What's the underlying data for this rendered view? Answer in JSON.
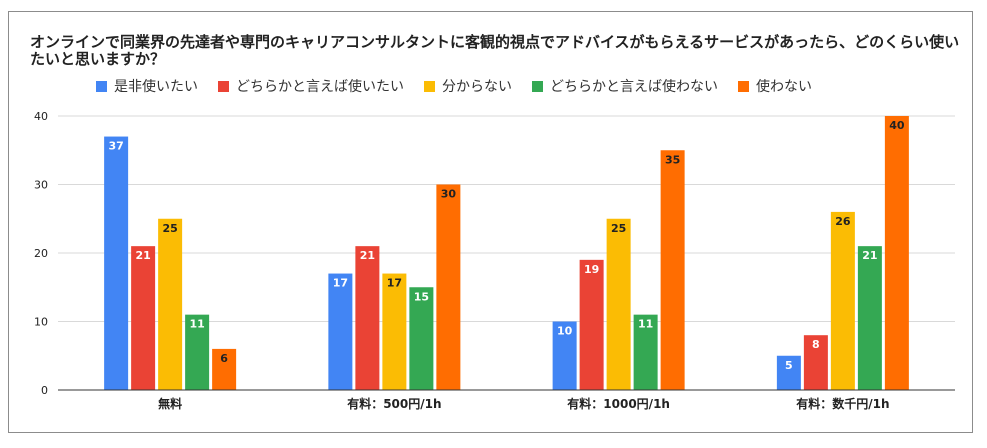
{
  "chart_data": {
    "type": "bar",
    "title": "オンラインで同業界の先達者や専門のキャリアコンサルタントに客観的視点でアドバイスがもらえるサービスがあったら、どのくらい使いたいと思いますか？",
    "categories": [
      "無料",
      "有料：500円/1h",
      "有料：1000円/1h",
      "有料：数千円/1h"
    ],
    "series": [
      {
        "name": "是非使いたい",
        "color": "#4285f4",
        "label_color": "#ffffff",
        "values": [
          37,
          17,
          10,
          5
        ]
      },
      {
        "name": "どちらかと言えば使いたい",
        "color": "#ea4335",
        "label_color": "#ffffff",
        "values": [
          21,
          21,
          19,
          8
        ]
      },
      {
        "name": "分からない",
        "color": "#fbbc04",
        "label_color": "#222222",
        "values": [
          25,
          17,
          25,
          26
        ]
      },
      {
        "name": "どちらかと言えば使わない",
        "color": "#34a853",
        "label_color": "#ffffff",
        "values": [
          11,
          15,
          11,
          21
        ]
      },
      {
        "name": "使わない",
        "color": "#ff6d01",
        "label_color": "#222222",
        "values": [
          6,
          30,
          35,
          40
        ]
      }
    ],
    "yticks": [
      0,
      10,
      20,
      30,
      40
    ],
    "ylim": [
      0,
      40
    ],
    "xlabel": "",
    "ylabel": "",
    "legend_position": "top",
    "grid": true
  }
}
